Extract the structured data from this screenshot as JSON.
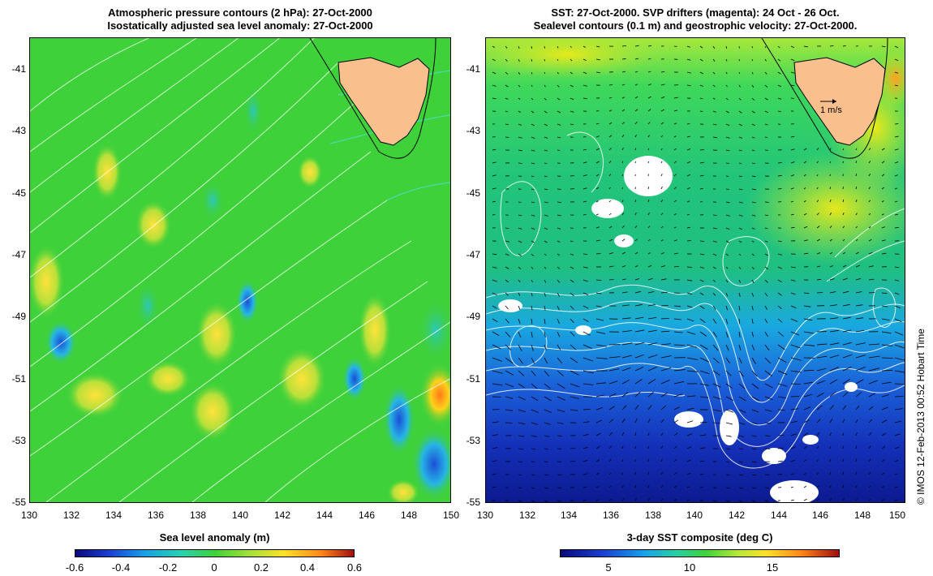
{
  "left_panel": {
    "title_line1": "Atmospheric pressure contours (2 hPa): 27-Oct-2000",
    "title_line2": "Isostatically adjusted sea level anomaly: 27-Oct-2000",
    "y_ticks": [
      "-41",
      "-43",
      "-45",
      "-47",
      "-49",
      "-51",
      "-53",
      "-55"
    ],
    "x_ticks": [
      "130",
      "132",
      "134",
      "136",
      "138",
      "140",
      "142",
      "144",
      "146",
      "148",
      "150"
    ],
    "colorbar": {
      "title": "Sea level anomaly (m)",
      "ticks": [
        "-0.6",
        "-0.4",
        "-0.2",
        "0",
        "0.2",
        "0.4",
        "0.6"
      ]
    }
  },
  "right_panel": {
    "title_line1": "SST: 27-Oct-2000. SVP drifters (magenta): 24 Oct - 26 Oct.",
    "title_line2": "Sealevel contours (0.1 m) and geostrophic velocity: 27-Oct-2000.",
    "y_ticks": [
      "-41",
      "-43",
      "-45",
      "-47",
      "-49",
      "-51",
      "-53",
      "-55"
    ],
    "x_ticks": [
      "130",
      "132",
      "134",
      "136",
      "138",
      "140",
      "142",
      "144",
      "146",
      "148",
      "150"
    ],
    "velocity_scale_label": "1 m/s",
    "colorbar": {
      "title": "3-day SST composite (deg C)",
      "ticks": [
        "5",
        "10",
        "15"
      ]
    }
  },
  "credit": "© IMOS 12-Feb-2013 00:52 Hobart Time",
  "colors": {
    "land": "#f9c08e",
    "ocean_green": "#3fd13a",
    "sst_blue": "#1a3fd0",
    "contour": "#ffffff"
  }
}
